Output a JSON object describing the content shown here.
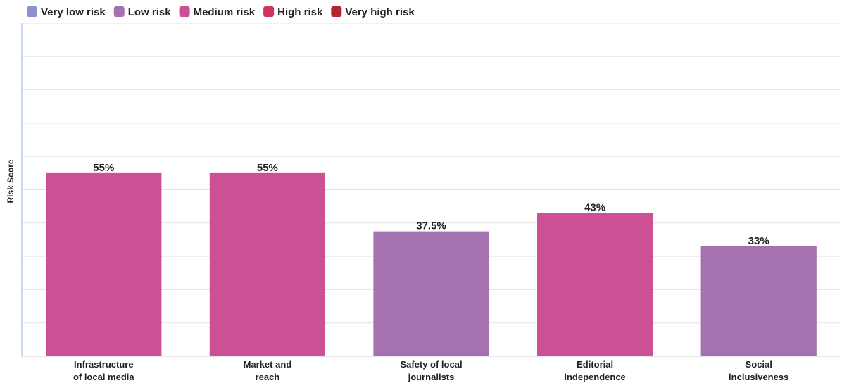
{
  "chart_data": {
    "type": "bar",
    "title": "",
    "xlabel": "",
    "ylabel": "Risk Score",
    "ylim": [
      0,
      100
    ],
    "grid": true,
    "legend_position": "top-left",
    "legend": [
      {
        "label": "Very low risk",
        "color": "#8e8fcf"
      },
      {
        "label": "Low risk",
        "color": "#a472b0"
      },
      {
        "label": "Medium risk",
        "color": "#cb5096"
      },
      {
        "label": "High risk",
        "color": "#d0335d"
      },
      {
        "label": "Very high risk",
        "color": "#b4262b"
      }
    ],
    "categories": [
      [
        "Infrastructure",
        "of local media"
      ],
      [
        "Market and",
        "reach"
      ],
      [
        "Safety of local",
        "journalists"
      ],
      [
        "Editorial",
        "independence"
      ],
      [
        "Social",
        "inclusiveness"
      ]
    ],
    "values": [
      55,
      55,
      37.5,
      43,
      33
    ],
    "value_labels": [
      "55%",
      "55%",
      "37.5%",
      "43%",
      "33%"
    ],
    "risk_levels": [
      "Medium risk",
      "Medium risk",
      "Low risk",
      "Medium risk",
      "Low risk"
    ]
  }
}
